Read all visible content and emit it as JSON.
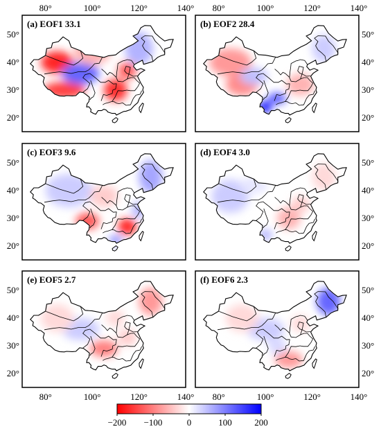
{
  "chart_data": [
    {
      "type": "heatmap",
      "panel": "(a)",
      "title": "EOF1",
      "variance": "33.1",
      "blobs": [
        [
          85,
          40,
          7,
          4,
          -170
        ],
        [
          88,
          30,
          9,
          3,
          -150
        ],
        [
          110,
          30,
          5,
          4,
          -160
        ],
        [
          115,
          37,
          4,
          3,
          -130
        ],
        [
          95,
          36,
          8,
          4,
          120
        ],
        [
          120,
          45,
          6,
          6,
          60
        ],
        [
          100,
          44,
          8,
          5,
          -60
        ]
      ]
    },
    {
      "type": "heatmap",
      "panel": "(b)",
      "title": "EOF2",
      "variance": "28.4",
      "blobs": [
        [
          100,
          24,
          3,
          2,
          200
        ],
        [
          105,
          27,
          4,
          2,
          130
        ],
        [
          85,
          40,
          9,
          5,
          -80
        ],
        [
          90,
          32,
          7,
          4,
          -90
        ],
        [
          115,
          32,
          6,
          4,
          -60
        ],
        [
          95,
          35,
          6,
          3,
          50
        ],
        [
          125,
          45,
          5,
          5,
          40
        ]
      ]
    },
    {
      "type": "heatmap",
      "panel": "(c)",
      "title": "EOF3",
      "variance": "9.6",
      "blobs": [
        [
          115,
          27,
          4,
          3,
          -170
        ],
        [
          98,
          29,
          5,
          3,
          -130
        ],
        [
          90,
          40,
          10,
          6,
          40
        ],
        [
          125,
          45,
          5,
          6,
          70
        ],
        [
          110,
          22,
          3,
          2,
          80
        ],
        [
          105,
          38,
          6,
          4,
          -40
        ],
        [
          120,
          33,
          3,
          3,
          60
        ]
      ]
    },
    {
      "type": "heatmap",
      "panel": "(d)",
      "title": "EOF4",
      "variance": "3.0",
      "blobs": [
        [
          85,
          38,
          8,
          6,
          40
        ],
        [
          110,
          30,
          5,
          4,
          -60
        ],
        [
          100,
          24,
          3,
          2,
          60
        ],
        [
          125,
          45,
          5,
          5,
          -30
        ],
        [
          115,
          35,
          4,
          3,
          -40
        ],
        [
          95,
          42,
          6,
          3,
          20
        ]
      ]
    },
    {
      "type": "heatmap",
      "panel": "(e)",
      "title": "EOF5",
      "variance": "2.7",
      "blobs": [
        [
          105,
          29,
          6,
          3,
          -100
        ],
        [
          125,
          46,
          5,
          5,
          -80
        ],
        [
          115,
          33,
          4,
          3,
          -40
        ],
        [
          95,
          36,
          8,
          4,
          40
        ],
        [
          85,
          40,
          7,
          5,
          -30
        ],
        [
          110,
          40,
          4,
          3,
          -30
        ]
      ]
    },
    {
      "type": "heatmap",
      "panel": "(f)",
      "title": "EOF6",
      "variance": "2.3",
      "blobs": [
        [
          127,
          46,
          5,
          5,
          120
        ],
        [
          100,
          36,
          8,
          4,
          40
        ],
        [
          110,
          25,
          6,
          3,
          -80
        ],
        [
          90,
          40,
          7,
          5,
          -30
        ],
        [
          115,
          38,
          4,
          3,
          -30
        ],
        [
          105,
          30,
          4,
          3,
          30
        ]
      ]
    }
  ],
  "x_ticks": [
    "80°",
    "100°",
    "120°",
    "140°"
  ],
  "y_ticks": [
    "50°",
    "40°",
    "30°",
    "20°"
  ],
  "colorbar": {
    "ticks": [
      "−200",
      "−100",
      "0",
      "100",
      "200"
    ],
    "range": [
      -200,
      200
    ],
    "colors": {
      "neg": "#ff0000",
      "mid": "#ffffff",
      "pos": "#0000ff"
    }
  }
}
